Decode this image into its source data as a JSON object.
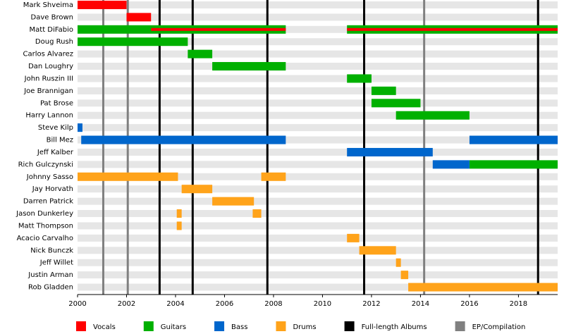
{
  "chart_data": {
    "type": "timeline",
    "categories": [
      "Mark Shveima",
      "Dave Brown",
      "Matt DiFabio",
      "Doug Rush",
      "Carlos Alvarez",
      "Dan Loughry",
      "John Ruszin III",
      "Joe Brannigan",
      "Pat Brose",
      "Harry Lannon",
      "Steve Kilp",
      "Bill Mez",
      "Jeff Kalber",
      "Rich Gulczynski",
      "Johnny Sasso",
      "Jay Horvath",
      "Darren Patrick",
      "Jason Dunkerley",
      "Matt Thompson",
      "Acacio Carvalho",
      "Nick Bunczk",
      "Jeff Willet",
      "Justin Arman",
      "Rob Gladden"
    ],
    "series": [
      {
        "name": "Vocals",
        "color": "#ff0000",
        "values": [
          [
            [
              2000,
              2002
            ]
          ],
          [
            [
              2002,
              2003
            ]
          ],
          [
            [
              2003,
              2008.5
            ],
            [
              2011,
              2019.6
            ]
          ],
          [],
          [],
          [],
          [],
          [],
          [],
          [],
          [],
          [],
          [],
          [],
          [],
          [],
          [],
          [],
          [],
          [],
          [],
          [],
          [],
          []
        ]
      },
      {
        "name": "Guitars",
        "color": "#00b000",
        "values": [
          [],
          [],
          [
            [
              2000,
              2008.5
            ],
            [
              2011,
              2019.6
            ]
          ],
          [
            [
              2000,
              2004.5
            ]
          ],
          [
            [
              2004.5,
              2005.5
            ]
          ],
          [
            [
              2005.5,
              2008.5
            ]
          ],
          [
            [
              2011,
              2012
            ]
          ],
          [
            [
              2012,
              2013
            ]
          ],
          [
            [
              2012,
              2014
            ]
          ],
          [
            [
              2013,
              2016
            ]
          ],
          [],
          [],
          [],
          [
            [
              2016,
              2019.6
            ]
          ],
          [],
          [],
          [],
          [],
          [],
          [],
          [],
          [],
          [],
          []
        ]
      },
      {
        "name": "Bass",
        "color": "#0066cc",
        "values": [
          [],
          [],
          [],
          [],
          [],
          [],
          [],
          [],
          [],
          [],
          [
            [
              2000,
              2000.2
            ]
          ],
          [
            [
              2000.15,
              2008.5
            ],
            [
              2016,
              2019.6
            ]
          ],
          [
            [
              2011,
              2014.5
            ]
          ],
          [
            [
              2014.5,
              2016
            ]
          ],
          [],
          [],
          [],
          [],
          [],
          [],
          [],
          [],
          [],
          []
        ]
      },
      {
        "name": "Drums",
        "color": "#ffa31a",
        "values": [
          [],
          [],
          [],
          [],
          [],
          [],
          [],
          [],
          [],
          [],
          [],
          [],
          [],
          [],
          [
            [
              2000,
              2004.1
            ],
            [
              2007.5,
              2008.5
            ]
          ],
          [
            [
              2004.25,
              2005.5
            ]
          ],
          [
            [
              2005.5,
              2007.2
            ]
          ],
          [
            [
              2004.05,
              2004.25
            ],
            [
              2007.15,
              2007.5
            ]
          ],
          [
            [
              2004.05,
              2004.25
            ]
          ],
          [
            [
              2011,
              2011.5
            ]
          ],
          [
            [
              2011.5,
              2013
            ]
          ],
          [
            [
              2013,
              2013.2
            ]
          ],
          [
            [
              2013.2,
              2013.5
            ]
          ],
          [
            [
              2013.5,
              2019.6
            ]
          ]
        ]
      }
    ],
    "album_lines": [
      {
        "name": "Full-length Albums",
        "color": "#000000",
        "values": [
          2003.35,
          2004.7,
          2007.75,
          2011.7,
          2018.8
        ]
      },
      {
        "name": "EP/Compilation",
        "color": "#808080",
        "values": [
          2001.05,
          2002.05,
          2014.15
        ]
      }
    ],
    "xlim": [
      2000,
      2019.6
    ],
    "xticks": [
      2000,
      2002,
      2004,
      2006,
      2008,
      2010,
      2012,
      2014,
      2016,
      2018
    ]
  }
}
